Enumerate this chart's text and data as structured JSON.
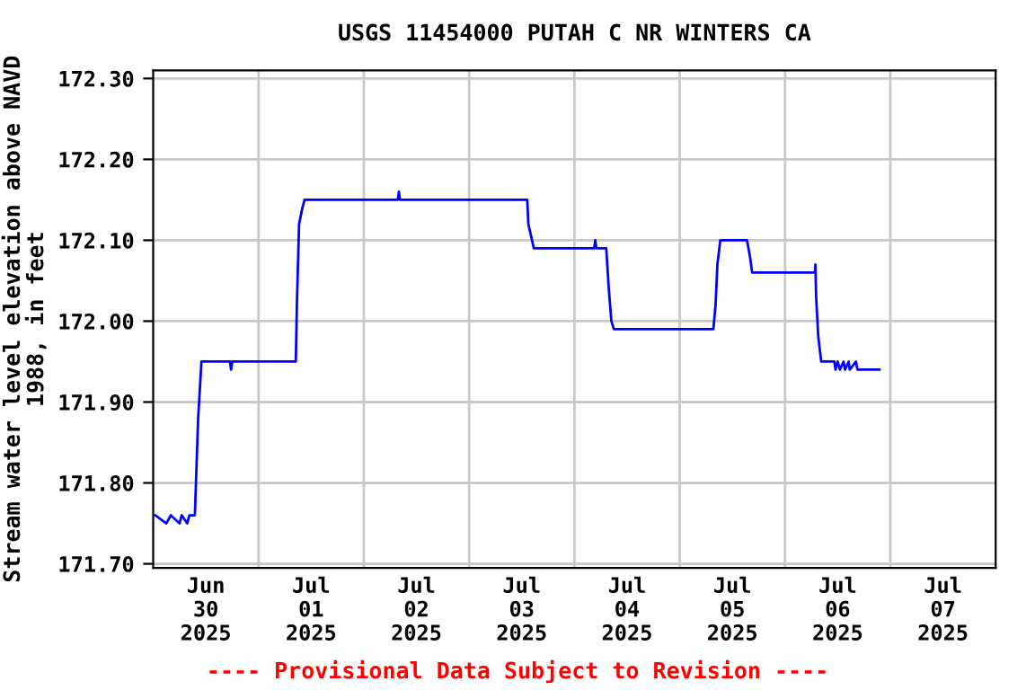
{
  "chart_data": {
    "type": "line",
    "title": "USGS 11454000 PUTAH C NR WINTERS CA",
    "ylabel": "Stream water level elevation above NAVD\n1988, in feet",
    "annotations": [
      "---- Provisional Data Subject to Revision ----"
    ],
    "x": [
      "2025-06-30T00:30",
      "2025-06-30T03:00",
      "2025-06-30T04:00",
      "2025-06-30T06:00",
      "2025-06-30T06:30",
      "2025-06-30T07:45",
      "2025-06-30T08:15",
      "2025-06-30T09:30",
      "2025-06-30T09:45",
      "2025-06-30T10:15",
      "2025-06-30T11:00",
      "2025-06-30T17:30",
      "2025-06-30T17:45",
      "2025-06-30T18:00",
      "2025-07-01T08:30",
      "2025-07-01T08:45",
      "2025-07-01T09:15",
      "2025-07-01T10:00",
      "2025-07-01T10:30",
      "2025-07-02T07:45",
      "2025-07-02T08:00",
      "2025-07-02T08:15",
      "2025-07-03T13:15",
      "2025-07-03T13:30",
      "2025-07-03T14:45",
      "2025-07-04T04:30",
      "2025-07-04T04:45",
      "2025-07-04T05:00",
      "2025-07-04T07:15",
      "2025-07-04T07:50",
      "2025-07-04T08:25",
      "2025-07-04T09:00",
      "2025-07-05T07:40",
      "2025-07-05T08:10",
      "2025-07-05T08:35",
      "2025-07-05T09:15",
      "2025-07-05T15:20",
      "2025-07-05T16:00",
      "2025-07-05T16:30",
      "2025-07-06T06:50",
      "2025-07-06T06:55",
      "2025-07-06T07:05",
      "2025-07-06T07:35",
      "2025-07-06T08:15",
      "2025-07-06T11:15",
      "2025-07-06T11:30",
      "2025-07-06T12:00",
      "2025-07-06T12:30",
      "2025-07-06T13:20",
      "2025-07-06T13:40",
      "2025-07-06T14:30",
      "2025-07-06T14:45",
      "2025-07-06T16:10",
      "2025-07-06T16:30",
      "2025-07-06T21:30"
    ],
    "series": [
      {
        "color": "#0000ff",
        "values": [
          171.76,
          171.75,
          171.76,
          171.75,
          171.76,
          171.75,
          171.76,
          171.76,
          171.8,
          171.88,
          171.95,
          171.95,
          171.94,
          171.95,
          171.95,
          172.02,
          172.12,
          172.14,
          172.15,
          172.15,
          172.16,
          172.15,
          172.15,
          172.12,
          172.09,
          172.09,
          172.1,
          172.09,
          172.09,
          172.04,
          172.0,
          171.99,
          171.99,
          172.02,
          172.07,
          172.1,
          172.1,
          172.08,
          172.06,
          172.06,
          172.07,
          172.03,
          171.98,
          171.95,
          171.95,
          171.94,
          171.95,
          171.94,
          171.95,
          171.94,
          171.95,
          171.94,
          171.95,
          171.94,
          171.94
        ]
      }
    ],
    "xlim": [
      "2025-06-30T00:00",
      "2025-07-08T00:00"
    ],
    "xticks": [
      {
        "value": "2025-06-30T12:00",
        "label": "Jun\n30\n2025"
      },
      {
        "value": "2025-07-01T00:00",
        "label": null
      },
      {
        "value": "2025-07-01T12:00",
        "label": "Jul\n01\n2025"
      },
      {
        "value": "2025-07-02T00:00",
        "label": null
      },
      {
        "value": "2025-07-02T12:00",
        "label": "Jul\n02\n2025"
      },
      {
        "value": "2025-07-03T00:00",
        "label": null
      },
      {
        "value": "2025-07-03T12:00",
        "label": "Jul\n03\n2025"
      },
      {
        "value": "2025-07-04T00:00",
        "label": null
      },
      {
        "value": "2025-07-04T12:00",
        "label": "Jul\n04\n2025"
      },
      {
        "value": "2025-07-05T00:00",
        "label": null
      },
      {
        "value": "2025-07-05T12:00",
        "label": "Jul\n05\n2025"
      },
      {
        "value": "2025-07-06T00:00",
        "label": null
      },
      {
        "value": "2025-07-06T12:00",
        "label": "Jul\n06\n2025"
      },
      {
        "value": "2025-07-07T00:00",
        "label": null
      },
      {
        "value": "2025-07-07T12:00",
        "label": "Jul\n07\n2025"
      }
    ],
    "ylim": [
      171.695,
      172.31
    ],
    "yticks": [
      {
        "value": 171.7,
        "label": "171.70"
      },
      {
        "value": 171.8,
        "label": "171.80"
      },
      {
        "value": 171.9,
        "label": "171.90"
      },
      {
        "value": 172.0,
        "label": "172.00"
      },
      {
        "value": 172.1,
        "label": "172.10"
      },
      {
        "value": 172.2,
        "label": "172.20"
      },
      {
        "value": 172.3,
        "label": "172.30"
      }
    ],
    "grid": true
  }
}
